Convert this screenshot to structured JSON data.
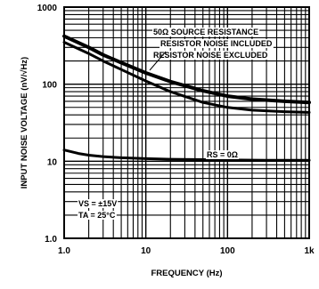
{
  "chart_data": {
    "type": "line",
    "xlabel": "FREQUENCY (Hz)",
    "ylabel": "INPUT NOISE VOLTAGE (nV/√Hz)",
    "xscale": "log",
    "yscale": "log",
    "xlim": [
      1,
      1000
    ],
    "ylim": [
      1,
      1000
    ],
    "xticks": [
      1,
      10,
      100,
      1000
    ],
    "xtick_labels": [
      "1.0",
      "10",
      "100",
      "1k"
    ],
    "yticks": [
      1,
      10,
      100,
      1000
    ],
    "ytick_labels": [
      "1.0",
      "10",
      "100",
      "1000"
    ],
    "grid": true,
    "series": [
      {
        "x": [
          1,
          1.5,
          2,
          3,
          5,
          10,
          20,
          50,
          100,
          200,
          500,
          1000
        ],
        "values": [
          420,
          345,
          300,
          240,
          190,
          140,
          108,
          82,
          70,
          64,
          60,
          58
        ]
      },
      {
        "x": [
          1,
          2,
          3,
          5,
          10,
          20,
          50,
          100,
          200,
          500,
          1000
        ],
        "values": [
          350,
          250,
          200,
          155,
          110,
          80,
          58,
          50,
          46,
          44,
          43
        ]
      },
      {
        "name": "RS = 0Ω",
        "x": [
          1,
          1.5,
          2,
          3,
          5,
          10,
          20,
          50,
          100,
          300,
          1000
        ],
        "values": [
          14,
          12.6,
          12,
          11.5,
          11.1,
          10.8,
          10.6,
          10.5,
          10.4,
          10.3,
          10.3
        ]
      }
    ],
    "annotations": [
      "50Ω SOURCE RESISTANCE",
      "RESISTOR NOISE INCLUDED",
      "RESISTOR NOISE EXCLUDED",
      "RS = 0Ω",
      "VS = ±15V",
      "TA = 25°C"
    ]
  }
}
